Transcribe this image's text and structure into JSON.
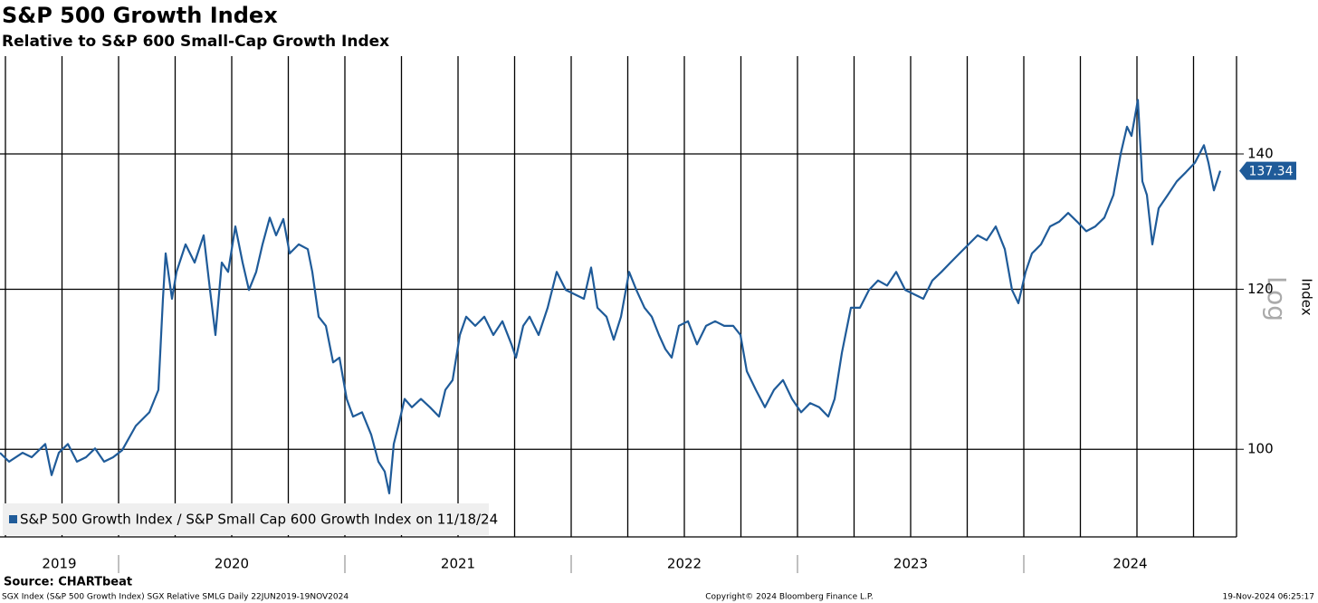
{
  "chart_data": {
    "type": "line",
    "title": "S&P 500 Growth Index",
    "subtitle": "Relative to S&P 600 Small-Cap Growth Index",
    "y_label": "Index",
    "scale_label": "Log",
    "source": "Source: CHARTbeat",
    "footer_left": "SGX Index (S&P 500 Growth Index) SGX Relative SMLG  Daily 22JUN2019-19NOV2024",
    "footer_center": "Copyright© 2024 Bloomberg Finance L.P.",
    "footer_right": "19-Nov-2024 06:25:17",
    "yscale": "log",
    "grid": true,
    "legend": "bottom-left",
    "xlim": [
      2019.476,
      2024.94
    ],
    "xticks": [
      {
        "value": 2019,
        "label": "2019"
      },
      {
        "value": 2020,
        "label": "2020"
      },
      {
        "value": 2021,
        "label": "2021"
      },
      {
        "value": 2022,
        "label": "2022"
      },
      {
        "value": 2023,
        "label": "2023"
      },
      {
        "value": 2024,
        "label": "2024"
      }
    ],
    "ylim": [
      90.5,
      156.5
    ],
    "yticks": [
      100,
      120,
      140
    ],
    "x": [
      2019.476,
      2019.516,
      2019.576,
      2019.616,
      2019.656,
      2019.676,
      2019.704,
      2019.736,
      2019.776,
      2019.816,
      2019.856,
      2019.896,
      2019.936,
      2019.976,
      2020.016,
      2020.076,
      2020.136,
      2020.176,
      2020.196,
      2020.208,
      2020.236,
      2020.256,
      2020.296,
      2020.336,
      2020.376,
      2020.404,
      2020.428,
      2020.456,
      2020.484,
      2020.516,
      2020.548,
      2020.576,
      2020.608,
      2020.636,
      2020.668,
      2020.696,
      2020.728,
      2020.756,
      2020.796,
      2020.836,
      2020.856,
      2020.884,
      2020.916,
      2020.948,
      2020.976,
      2021.008,
      2021.036,
      2021.076,
      2021.116,
      2021.148,
      2021.176,
      2021.196,
      2021.216,
      2021.236,
      2021.264,
      2021.296,
      2021.336,
      2021.376,
      2021.416,
      2021.444,
      2021.476,
      2021.508,
      2021.536,
      2021.576,
      2021.616,
      2021.656,
      2021.696,
      2021.736,
      2021.756,
      2021.788,
      2021.816,
      2021.856,
      2021.896,
      2021.936,
      2021.976,
      2022.016,
      2022.056,
      2022.088,
      2022.116,
      2022.156,
      2022.188,
      2022.22,
      2022.256,
      2022.288,
      2022.324,
      2022.356,
      2022.388,
      2022.416,
      2022.444,
      2022.476,
      2022.516,
      2022.556,
      2022.596,
      2022.636,
      2022.676,
      2022.716,
      2022.748,
      2022.776,
      2022.816,
      2022.856,
      2022.896,
      2022.936,
      2022.976,
      2023.016,
      2023.056,
      2023.096,
      2023.136,
      2023.164,
      2023.196,
      2023.236,
      2023.276,
      2023.316,
      2023.356,
      2023.396,
      2023.436,
      2023.476,
      2023.516,
      2023.556,
      2023.596,
      2023.636,
      2023.676,
      2023.716,
      2023.756,
      2023.796,
      2023.836,
      2023.876,
      2023.916,
      2023.948,
      2023.976,
      2024.008,
      2024.036,
      2024.076,
      2024.116,
      2024.156,
      2024.196,
      2024.236,
      2024.276,
      2024.316,
      2024.356,
      2024.396,
      2024.428,
      2024.456,
      2024.476,
      2024.504,
      2024.524,
      2024.544,
      2024.568,
      2024.596,
      2024.636,
      2024.676,
      2024.716,
      2024.756,
      2024.796,
      2024.816,
      2024.84,
      2024.868
    ],
    "series": [
      {
        "name": "S&P 500 Growth Index / S&P Small Cap 600 Growth Index on 11/18/24",
        "color": "#1f5b99",
        "values": [
          99.6,
          98.6,
          99.6,
          99.1,
          100.1,
          100.6,
          97.1,
          99.6,
          100.6,
          98.6,
          99.1,
          100.1,
          98.6,
          99.1,
          99.9,
          102.7,
          104.3,
          107.0,
          118.7,
          125.0,
          118.7,
          122.4,
          126.3,
          123.7,
          127.6,
          119.9,
          113.9,
          123.7,
          122.4,
          128.9,
          123.7,
          119.9,
          122.4,
          126.3,
          130.2,
          127.6,
          130.0,
          125.0,
          126.3,
          125.6,
          122.4,
          116.3,
          115.1,
          110.4,
          111.0,
          105.9,
          103.8,
          104.3,
          101.7,
          98.6,
          97.5,
          95.1,
          100.6,
          102.7,
          105.9,
          104.9,
          105.9,
          104.9,
          103.8,
          107.0,
          108.2,
          113.9,
          116.3,
          115.1,
          116.3,
          113.9,
          115.7,
          112.7,
          111.0,
          115.1,
          116.3,
          113.9,
          117.5,
          122.4,
          119.9,
          119.3,
          118.7,
          123.0,
          117.5,
          116.3,
          113.3,
          116.3,
          122.4,
          119.9,
          117.5,
          116.3,
          113.9,
          112.1,
          111.0,
          115.1,
          115.7,
          112.7,
          115.1,
          115.7,
          115.1,
          115.1,
          113.9,
          109.3,
          107.0,
          104.9,
          107.0,
          108.2,
          105.9,
          104.3,
          105.4,
          104.9,
          103.8,
          105.9,
          111.6,
          117.5,
          117.5,
          119.9,
          121.2,
          120.5,
          122.4,
          119.9,
          119.3,
          118.7,
          121.2,
          122.4,
          123.7,
          125.0,
          126.3,
          127.6,
          126.9,
          128.9,
          125.6,
          119.9,
          118.1,
          122.4,
          125.0,
          126.3,
          128.9,
          129.6,
          130.9,
          129.6,
          128.2,
          128.9,
          130.2,
          133.6,
          140.0,
          144.4,
          142.9,
          148.9,
          135.7,
          133.6,
          126.3,
          131.6,
          133.6,
          135.7,
          137.1,
          138.6,
          141.4,
          138.6,
          134.3,
          137.34
        ]
      }
    ]
  }
}
